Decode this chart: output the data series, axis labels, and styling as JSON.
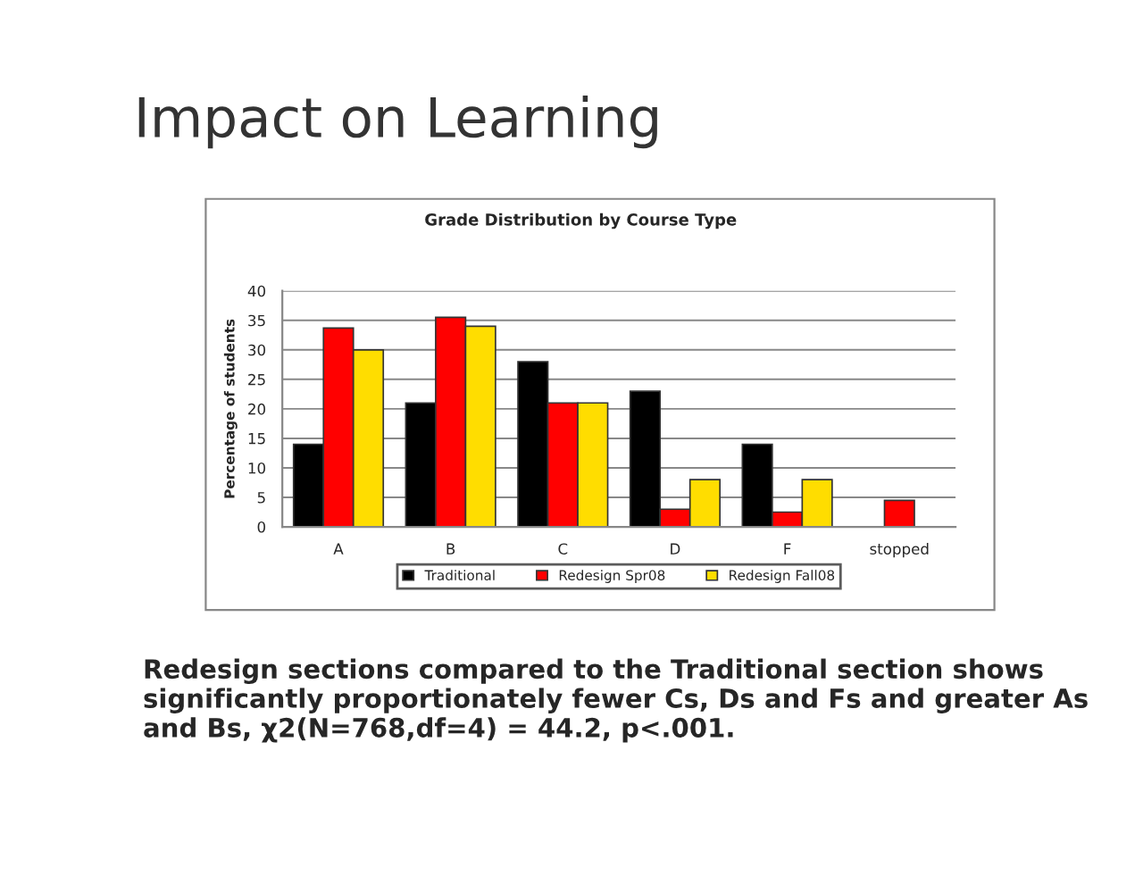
{
  "chart_data": {
    "type": "bar",
    "title": "Impact on Learning",
    "subtitle": "Grade Distribution by Course Type",
    "ylabel": "Percentage of students",
    "categories": [
      "A",
      "B",
      "C",
      "D",
      "F",
      "stopped"
    ],
    "series": [
      {
        "name": "Traditional",
        "color": "#000000",
        "values": [
          14,
          21,
          28,
          23,
          14,
          null
        ]
      },
      {
        "name": "Redesign Spr08",
        "color": "#ff0000",
        "values": [
          33.7,
          35.5,
          21,
          3,
          2.5,
          4.5
        ]
      },
      {
        "name": "Redesign Fall08",
        "color": "#ffdd00",
        "values": [
          30,
          34,
          21,
          8,
          8,
          null
        ]
      }
    ],
    "ylim": [
      0,
      40
    ],
    "yticks": [
      0,
      5,
      10,
      15,
      20,
      25,
      30,
      35,
      40
    ],
    "grid": "y",
    "legend": "bottom",
    "annotations": [
      "Redesign sections compared to the Traditional section shows significantly proportionately fewer Cs, Ds and Fs and greater As and Bs, χ2(N=768,df=4) = 44.2, p<.001."
    ]
  }
}
